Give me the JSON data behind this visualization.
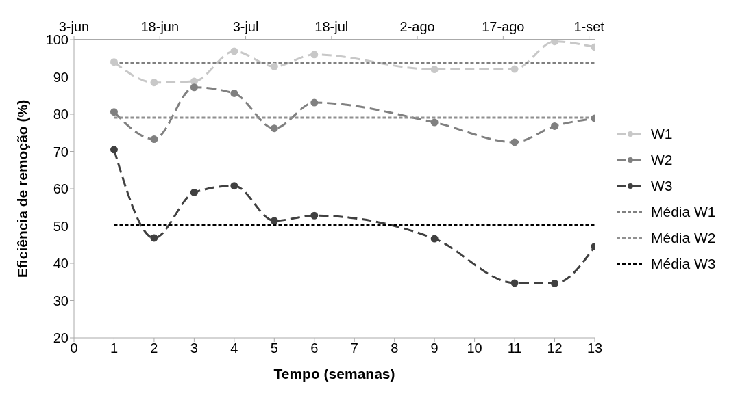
{
  "chart_data": {
    "type": "line",
    "xlabel": "Tempo (semanas)",
    "ylabel": "Eficiência de remoção (%)",
    "xlim": [
      0,
      13
    ],
    "xticks": [
      0,
      1,
      2,
      3,
      4,
      5,
      6,
      7,
      8,
      9,
      10,
      11,
      12,
      13
    ],
    "x2lim": [
      "--06-03",
      "--09-02"
    ],
    "x2ticks": [
      {
        "value": "--06-03",
        "label": "3-jun"
      },
      {
        "value": "--06-18",
        "label": "18-jun"
      },
      {
        "value": "--07-03",
        "label": "3-jul"
      },
      {
        "value": "--07-18",
        "label": "18-jul"
      },
      {
        "value": "--08-02",
        "label": "2-ago"
      },
      {
        "value": "--08-17",
        "label": "17-ago"
      },
      {
        "value": "--09-01",
        "label": "1-set"
      }
    ],
    "ylim": [
      20,
      100
    ],
    "yticks": [
      20,
      30,
      40,
      50,
      60,
      70,
      80,
      90,
      100
    ],
    "grid": false,
    "legend": "right",
    "marker": "circle",
    "line_style": "dashed",
    "series": [
      {
        "name": "W1",
        "color": "#c8c8c8",
        "x": [
          1,
          2,
          3,
          4,
          5,
          6,
          9,
          11,
          12,
          13
        ],
        "values": [
          94,
          88.5,
          88.8,
          96.9,
          92.8,
          96,
          92,
          92.1,
          99.5,
          98
        ]
      },
      {
        "name": "W2",
        "color": "#808080",
        "x": [
          1,
          2,
          3,
          4,
          5,
          6,
          9,
          11,
          12,
          13
        ],
        "values": [
          80.6,
          73.3,
          87.2,
          85.6,
          76.2,
          83.1,
          77.8,
          72.5,
          76.8,
          78.9
        ]
      },
      {
        "name": "W3",
        "color": "#404040",
        "x": [
          1,
          2,
          3,
          4,
          5,
          6,
          9,
          11,
          12,
          13
        ],
        "values": [
          70.5,
          46.8,
          59,
          60.8,
          51.4,
          52.8,
          46.6,
          34.7,
          34.6,
          44.5
        ]
      },
      {
        "name": "Média W1",
        "color": "#808080",
        "x": [
          1,
          13
        ],
        "values": [
          93.8,
          93.8
        ],
        "marker": "none",
        "line_style": "dotted"
      },
      {
        "name": "Média W2",
        "color": "#909090",
        "x": [
          1,
          13
        ],
        "values": [
          79.1,
          79.1
        ],
        "marker": "none",
        "line_style": "dotted"
      },
      {
        "name": "Média W3",
        "color": "#000000",
        "x": [
          1,
          13
        ],
        "values": [
          50.2,
          50.2
        ],
        "marker": "none",
        "line_style": "dotted"
      }
    ]
  }
}
